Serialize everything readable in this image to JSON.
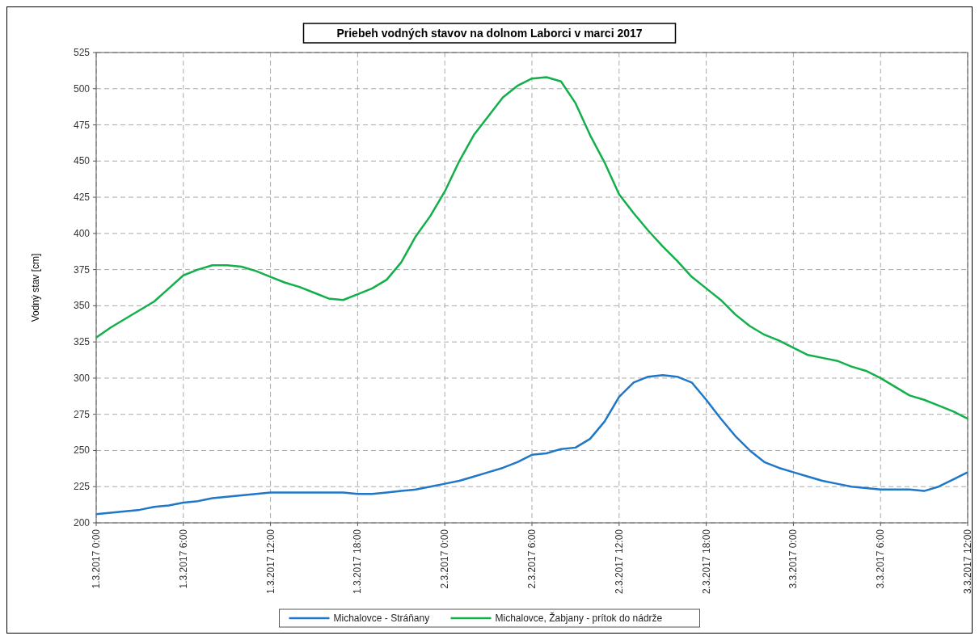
{
  "chart_data": {
    "type": "line",
    "title": "Priebeh vodných stavov na dolnom Laborci v marci 2017",
    "ylabel": "Vodný stav [cm]",
    "x": [
      "2017-03-01T00:00",
      "2017-03-01T01:00",
      "2017-03-01T02:00",
      "2017-03-01T03:00",
      "2017-03-01T04:00",
      "2017-03-01T05:00",
      "2017-03-01T06:00",
      "2017-03-01T07:00",
      "2017-03-01T08:00",
      "2017-03-01T09:00",
      "2017-03-01T10:00",
      "2017-03-01T11:00",
      "2017-03-01T12:00",
      "2017-03-01T13:00",
      "2017-03-01T14:00",
      "2017-03-01T15:00",
      "2017-03-01T16:00",
      "2017-03-01T17:00",
      "2017-03-01T18:00",
      "2017-03-01T19:00",
      "2017-03-01T20:00",
      "2017-03-01T21:00",
      "2017-03-01T22:00",
      "2017-03-01T23:00",
      "2017-03-02T00:00",
      "2017-03-02T01:00",
      "2017-03-02T02:00",
      "2017-03-02T03:00",
      "2017-03-02T04:00",
      "2017-03-02T05:00",
      "2017-03-02T06:00",
      "2017-03-02T07:00",
      "2017-03-02T08:00",
      "2017-03-02T09:00",
      "2017-03-02T10:00",
      "2017-03-02T11:00",
      "2017-03-02T12:00",
      "2017-03-02T13:00",
      "2017-03-02T14:00",
      "2017-03-02T15:00",
      "2017-03-02T16:00",
      "2017-03-02T17:00",
      "2017-03-02T18:00",
      "2017-03-02T19:00",
      "2017-03-02T20:00",
      "2017-03-02T21:00",
      "2017-03-02T22:00",
      "2017-03-02T23:00",
      "2017-03-03T00:00",
      "2017-03-03T01:00",
      "2017-03-03T02:00",
      "2017-03-03T03:00",
      "2017-03-03T04:00",
      "2017-03-03T05:00",
      "2017-03-03T06:00",
      "2017-03-03T07:00",
      "2017-03-03T08:00",
      "2017-03-03T09:00",
      "2017-03-03T10:00",
      "2017-03-03T11:00",
      "2017-03-03T12:00"
    ],
    "series": [
      {
        "name": "Michalovce - Stráňany",
        "color": "#1f77c8",
        "values": [
          206,
          207,
          208,
          209,
          211,
          212,
          214,
          215,
          217,
          218,
          219,
          220,
          221,
          221,
          221,
          221,
          221,
          221,
          220,
          220,
          221,
          222,
          223,
          225,
          227,
          229,
          232,
          235,
          238,
          242,
          247,
          248,
          251,
          252,
          258,
          270,
          287,
          297,
          301,
          302,
          301,
          297,
          285,
          272,
          260,
          250,
          242,
          238,
          235,
          232,
          229,
          227,
          225,
          224,
          223,
          223,
          223,
          222,
          225,
          230,
          235
        ]
      },
      {
        "name": "Michalovce, Žabjany - prítok do nádrže",
        "color": "#12b04a",
        "values": [
          328,
          335,
          341,
          347,
          353,
          362,
          371,
          375,
          378,
          378,
          377,
          374,
          370,
          366,
          363,
          359,
          355,
          354,
          358,
          362,
          368,
          380,
          398,
          412,
          429,
          450,
          468,
          481,
          494,
          502,
          507,
          508,
          505,
          490,
          468,
          449,
          427,
          414,
          402,
          391,
          381,
          370,
          362,
          354,
          344,
          336,
          330,
          326,
          321,
          316,
          314,
          312,
          308,
          305,
          300,
          294,
          288,
          285,
          281,
          277,
          272
        ]
      }
    ],
    "xlim": [
      "2017-03-01T00:00",
      "2017-03-03T12:00"
    ],
    "xticks": [
      {
        "value": "2017-03-01T00:00",
        "label": "1.3.2017 0:00"
      },
      {
        "value": "2017-03-01T06:00",
        "label": "1.3.2017 6:00"
      },
      {
        "value": "2017-03-01T12:00",
        "label": "1.3.2017 12:00"
      },
      {
        "value": "2017-03-01T18:00",
        "label": "1.3.2017 18:00"
      },
      {
        "value": "2017-03-02T00:00",
        "label": "2.3.2017 0:00"
      },
      {
        "value": "2017-03-02T06:00",
        "label": "2.3.2017 6:00"
      },
      {
        "value": "2017-03-02T12:00",
        "label": "2.3.2017 12:00"
      },
      {
        "value": "2017-03-02T18:00",
        "label": "2.3.2017 18:00"
      },
      {
        "value": "2017-03-03T00:00",
        "label": "3.3.2017 0:00"
      },
      {
        "value": "2017-03-03T06:00",
        "label": "3.3.2017 6:00"
      },
      {
        "value": "2017-03-03T12:00",
        "label": "3.3.2017 12:00"
      }
    ],
    "ylim": [
      200,
      525
    ],
    "yticks": [
      200,
      225,
      250,
      275,
      300,
      325,
      350,
      375,
      400,
      425,
      450,
      475,
      500,
      525
    ],
    "grid": true,
    "legend": "bottom",
    "line_style": "solid"
  }
}
